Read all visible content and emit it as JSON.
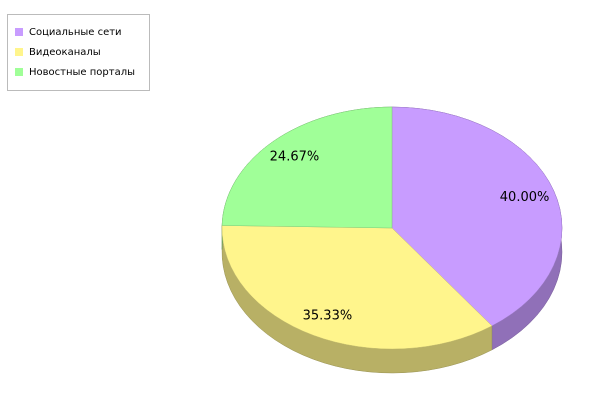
{
  "chart_data": {
    "type": "pie",
    "categories": [
      "Социальные сети",
      "Видеоканалы",
      "Новостные порталы"
    ],
    "values": [
      40,
      35.33,
      24.67
    ],
    "value_labels": [
      "40.00%",
      "35.33%",
      "24.67%"
    ],
    "colors": [
      "#c89cff",
      "#fff58c",
      "#a0ff98"
    ],
    "legend": "top-left"
  }
}
